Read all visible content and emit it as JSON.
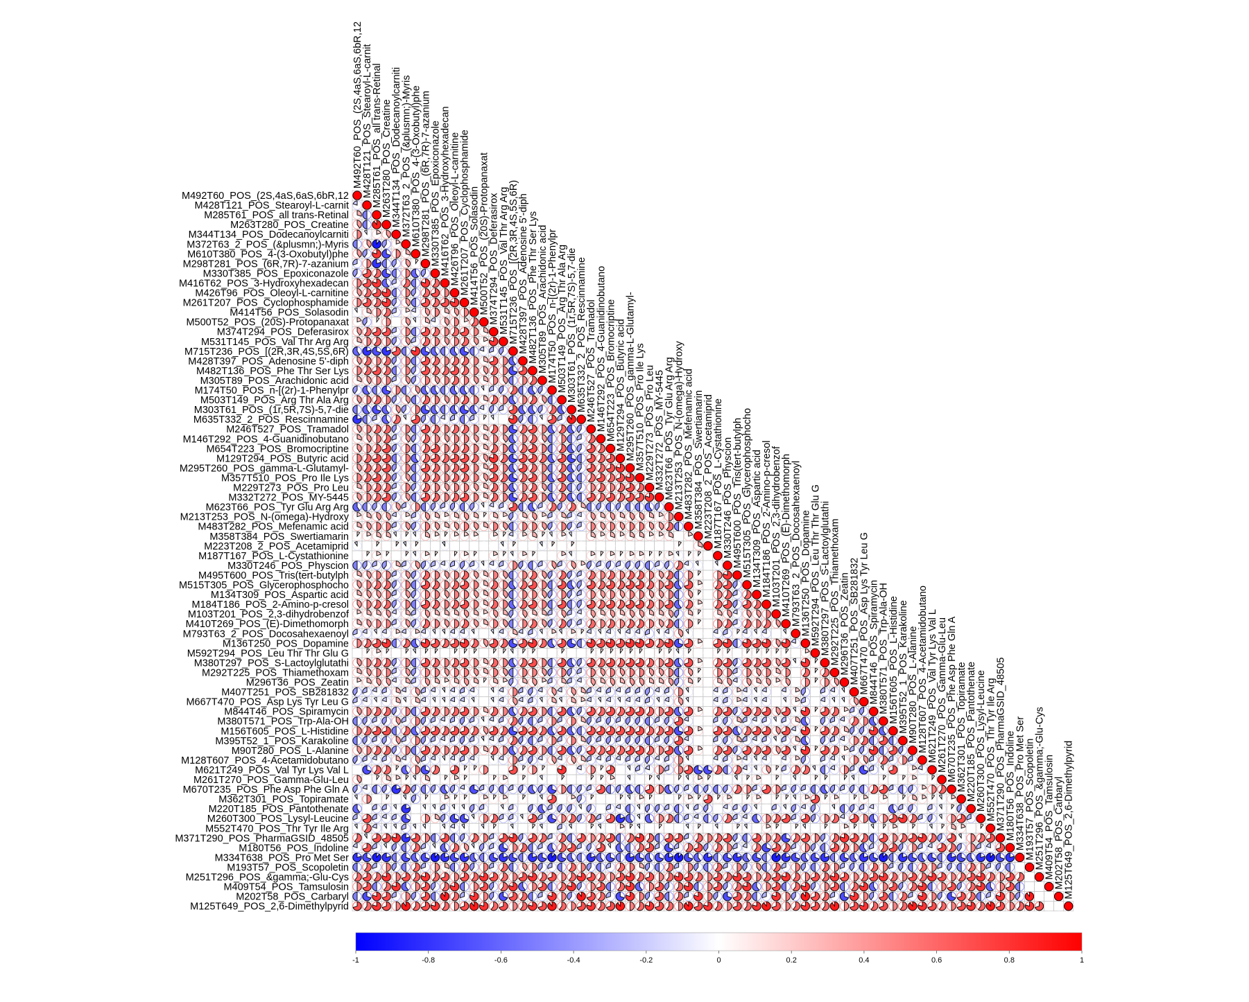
{
  "chart_data": {
    "type": "heatmap",
    "style": "corrplot-pie-lower",
    "title": "",
    "color_scale": {
      "low": "#0000FF",
      "mid": "#FFFFFF",
      "high": "#FF0000",
      "range": [
        -1,
        1
      ]
    },
    "colorbar_ticks": [
      "-1",
      "-0.8",
      "-0.6",
      "-0.4",
      "-0.2",
      "0",
      "0.2",
      "0.4",
      "0.6",
      "0.8",
      "1"
    ],
    "value_encoding": "each char c in lower-triangle row strings: (index of c in 'ABCDEFGHIJKLMNOPQRSTU' - 10) / 10; diagonal = 1",
    "labels": [
      "M492T60_POS_(2S,4aS,6aS,6bR,12",
      "M428T121_POS_Stearoyl-L-carnit",
      "M285T61_POS_all trans-Retinal",
      "M263T280_POS_Creatine",
      "M344T134_POS_Dodecanoylcarniti",
      "M372T63_2_POS_(&plusmn;)-Myris",
      "M610T380_POS_4-(3-Oxobutyl)phe",
      "M298T281_POS_(6R,7R)-7-azanium",
      "M330T385_POS_Epoxiconazole",
      "M416T62_POS_3-Hydroxyhexadecan",
      "M426T96_POS_Oleoyl-L-carnitine",
      "M261T207_POS_Cyclophosphamide",
      "M414T56_POS_Solasodin",
      "M500T52_POS_(20S)-Protopanaxat",
      "M374T294_POS_Deferasirox",
      "M531T145_POS_Val Thr Arg Arg",
      "M715T236_POS_[(2R,3R,4S,5S,6R)",
      "M428T397_POS_Adenosine 5'-diph",
      "M482T136_POS_Phe Thr Ser Lys",
      "M305T89_POS_Arachidonic acid",
      "M174T50_POS_n-[(2r)-1-Phenylpr",
      "M503T149_POS_Arg Thr Ala Arg",
      "M303T61_POS_(1r,5R,7S)-5,7-die",
      "M635T332_2_POS_Rescinnamine",
      "M246T527_POS_Tramadol",
      "M146T292_POS_4-Guanidinobutano",
      "M654T223_POS_Bromocriptine",
      "M129T294_POS_Butyric acid",
      "M295T260_POS_gamma-L-Glutamyl-",
      "M357T510_POS_Pro Ile Lys",
      "M229T273_POS_Pro Leu",
      "M332T272_POS_MY-5445",
      "M623T66_POS_Tyr Glu Arg Arg",
      "M213T253_POS_N-(omega)-Hydroxy",
      "M483T282_POS_Mefenamic acid",
      "M358T384_POS_Swertiamarin",
      "M223T208_2_POS_Acetamiprid",
      "M187T167_POS_L-Cystathionine",
      "M330T246_POS_Physcion",
      "M495T600_POS_Tris(tert-butylph",
      "M515T305_POS_Glycerophosphocho",
      "M134T309_POS_Aspartic acid",
      "M184T186_POS_2-Amino-p-cresol",
      "M103T201_POS_2,3-dihydrobenzof",
      "M410T269_POS_(E)-Dimethomorph",
      "M793T63_2_POS_Docosahexaenoyl",
      "M136T250_POS_Dopamine",
      "M592T294_POS_Leu Thr Thr Glu G",
      "M380T297_POS_S-Lactoylglutathi",
      "M292T225_POS_Thiamethoxam",
      "M296T36_POS_Zeatin",
      "M407T251_POS_SB281832",
      "M667T470_POS_Asp Lys Tyr Leu G",
      "M844T46_POS_Spiramycin",
      "M380T571_POS_Trp-Ala-OH",
      "M156T605_POS_L-Histidine",
      "M395T52_1_POS_Karakoline",
      "M90T280_POS_L-Alanine",
      "M128T607_POS_4-Acetamidobutano",
      "M621T249_POS_Val Tyr Lys Val L",
      "M261T270_POS_Gamma-Glu-Leu",
      "M670T235_POS_Phe Asp Phe Gln A",
      "M362T301_POS_Topiramate",
      "M220T185_POS_Pantothenate",
      "M260T300_POS_Lysyl-Leucine",
      "M552T470_POS_Thr Tyr Ile Arg",
      "M371T290_POS_PharmaGSID_48505",
      "M180T56_POS_Indoline",
      "M334T638_POS_Pro Met Ser",
      "M193T57_POS_Scopoletin",
      "M251T296_POS_&gamma;-Glu-Cys",
      "M409T54_POS_Tamsulosin",
      "M202T58_POS_Carbaryl",
      "M125T649_POS_2,6-Dimethylpyrid"
    ],
    "lower_rows": [
      "",
      "I",
      "NF",
      "OFT",
      "PJMO",
      "FOBGM",
      "OGSDPN",
      "HPCFGOL",
      "GRQDFPEG",
      "PRSEHQFSQ",
      "OQRSFPGQRP",
      "PRQSGOFRQRS",
      "JNPQHMIOPNOP",
      "MGLPKOJNIOPMQ",
      "OQRRHPFRQPQRPN",
      "NPQPGOHQPOPQOMS",
      "ECDCRFSDEFEDFIHG",
      "OQPQGPFRQPQQPNRPE",
      "PQRQFPGRQQRQPOQPDR",
      "NOPPHOGPOPQPONPOFPQ",
      "GEFDPFOEEFEEFJHGQFEG",
      "OPQPGOFQPOPQPNQPEPQOF",
      "FEDEOGPDEFEDEIGHREEGQE",
      "CFHEQJRGFIHFHLJKSGFJRHT",
      "OPQQGPFRQPQQPNQPDQRPEQEG",
      "NOPQHOGQPOPPONPOEPQOFPFHQ",
      "OPQRGPFQRPQQPNQPEQRPFQEGRQ",
      "PQRRFPEQRQRRQOSQDRRQERDFRQR",
      "OQQRGPFRQPQRPNRPERQPFQEGRQRS",
      "PQRQGOFQQPQQPORQDQRPEREFQRQRS",
      "NPQQHPGQPOPPONQPEPQOFQFGPQPQRQ",
      "OPQRGOFRQPQRPNQPDQRPEQEFRQRQRRS",
      "EFGFOHPFGHGFGJIHRFEHQGQNFGFGFFEG",
      "MNOOIMHONMNONLNMGNOMHNHIONONOONMP",
      "NOPPHOGPONOPONPOFPPOGPGHPOPOPPOOQF",
      "LMNNJLJNMLMMMKMLIMNLJMJKNMNMNNMMNKM",
      "JKLKLJLKKJKKKKKJLKKJLKLKKKKKKKKKKLKN",
      "KLMLKLJMLKLMLKMLJMLKKMJKMLMLMMLLMJLLK",
      "FGHGNHOGHIHGHJIHPGFHOHOMGHGHGGFHGQIJKJ",
      "NOPPHOGQPOPQONPOFPQOGQGHQPQPQQPOQFPLKPS",
      "OPQQGPFRQPQRPNQPEQRPFREGRQRQRRQPRERMKQRG",
      "NOOPHOGPPOPPONPOFPPOGPGHPOPOPPOOPFOLKPQHQ",
      "OPQQGPFRQPQRPNQPEQRPFRFGRQRQRRQPREQMKQRGRQ",
      "MNNOINHONNNONMONGONNHOHIONONOONNOGNLKNOIOOP",
      "NOPPHOGQPOPQONPOFPQOGQGHQPQPQQPOQFPLKPQHQPQO",
      "HIJIMIMIJJIIJKJINIHJMJMLIJIJIIHJIOJKKIHLIJIKJ",
      "PQRSFQESRQRSQORQDRSQERDFSRSRSSRQSDRMKRSFSRSOSI",
      "KLMLKLJLLKLLLKLLJLLKKLKKLLLLLLKLLJLKKLLKLLLLLKM",
      "OPQQGPFRQPQRPNQPEQRPFREGRQRQRRQPRERMKQRGRQRORJSL",
      "NOPPHOGPPOPPONPOFPPOGPGHPOPOPPOOPFOLKPPHPOPNPKQLQ",
      "MNOOINHONMNONLNMGNOMHNHIONONOONNOGNLKNOIONOMOKPLPO",
      "GHIHNIOHIJIHIKJIPHGIOIONHIHIHHGIHPJKKIHMIJIKIMGKHIJ",
      "HIJINJNIJJIIJKJIOIHJNJNMIJIJIIHJIOJKKIHMIJIKJMHKIJJO",
      "OPQQGPFRQPQRPNQPEQRPFREGRQRQRRQPRERMKQRGRQRORJSLRQMHG",
      "FGHGOHPGHIHGHJIHQGFHPHPNGHGHGGFHGRIKKHGNHIHJHNEKGHIQPE",
      "PQRRFQERRQRRQORQDRRQEREFRRRRRRQQRDRMKRREQRRORISLRQNGGSE",
      "FGHGOHPGHIHGHJIHQGFHPHPNGHGHGGFHGRIKKHGNHIHJHNEKGHIPQFRF",
      "OPQQGPFRQPQRPNQPEQRPFREGRQRQRRQPRERMKQRGRQRORJSLRQMHGSFRG",
      "GHIHNIOHIJIHIKJIPHGIOIONHIHIHHGIHPJKKIHMIJIKIMGKHIJPOHQHPH",
      "KDQQLEPDQKRLLPKKRLPLKSKIPLRKJHIPHPRDDQFQIJOLHQQJFIPHDHJRKMI",
      "OKLNMLJNKLMLKKLMKLKJKLKKLLMKJKLJKLJMLKKJLMKLKJKLLKLJKKLKLMKL",
      "GIFGCQGFGEGIDHGFHGEGDPFGHRFGEFRPEGHFGFGQPHRPHGHFEGHGFQRHFGMPQ",
      "JPKLKJGLKMLLKMLMKLKJRKMGLKKLJMLKKLMLRLMKLMKLLJMRLMKLMKMKLNMLJM",
      "EKHHJCKJJHJJGHKJHKGEHGGJGKHIFJGGHFJHGKIHGJKHJGIGKJFGHIKEHGKHJLG",
      "HRHIHDKPNGDDJPQHHJRHDPQGQHRCEJEPQFHIFGQHIEPQRHRGPQIRPEPRSQHGJPRH",
      "JQIJJHJJKJIJKJLKJKLJKHJKLJKMLJKLKKJLKJKLJKMLKLJKLKMLKJLMKLKJLNMKL",
      "QJRRSCRPFRFGQPHRSGRQHQFRPQRFQSQFRRHQPQRGFRPQDQRPGQSRQFRPQRSQGRJPQR",
      "IRHJGFQHJEQOJGHDPQFHEQRHGRJEFQRHDHQRGQPHIQDRQHPGFRQPEHQRGPHIRQGPHIR",
      "CDBCFDEDBCDCEFDCDFCDBDEFCEDFCDEDCBDECFDCEDFBCDEDCFDECDBFCDEDFCDECBDC",
      "FQHPGFQHPNFQGPHQFOPGHFQPGFHQPNGFQHPGFQHPGOFQHPGFQPHGFQPHGFQPHGFQPHGF",
      "QRQSPRQSQRPRQSRQPRSQRPQSRQPRSQRPQSRQPRQSRPQRSQPRQSRPQRSQPRQSRPQRSQPRQ",
      "PRFQSEPRGQSFPRGQSEPRFQSGPRFQSEPRGQSFPRGQSEPRFQSGPRFQSEPRGQSFPRGQSEPRF",
      "FDSRHPGRFTQHSPGDRQFHSPGTRQHDSPGRFQHSPGDRQFHSPGTRQHDSPGRFQHSPGDRQFHSPGT",
      "RQSRPTQRSQPRTSQRPQSRTQPRSQRTPQSRQPTRSQPRQSTRPQSRQTPRSQRPQTSRQPRSQTRPQSR"
    ]
  }
}
